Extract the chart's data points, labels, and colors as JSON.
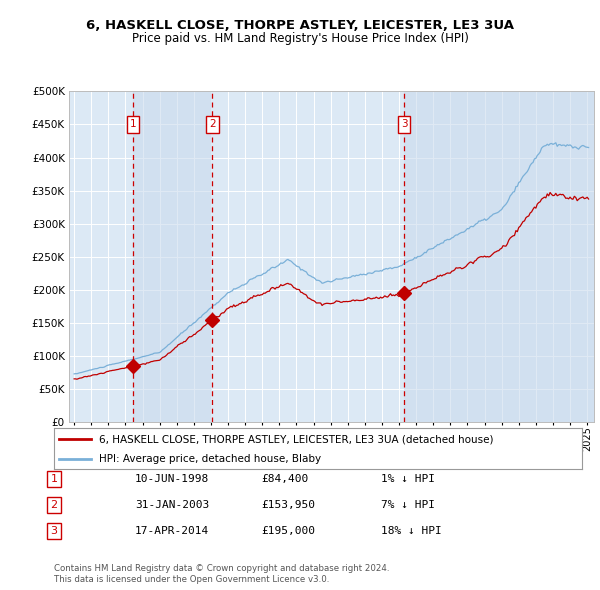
{
  "title": "6, HASKELL CLOSE, THORPE ASTLEY, LEICESTER, LE3 3UA",
  "subtitle": "Price paid vs. HM Land Registry's House Price Index (HPI)",
  "background_color": "#ffffff",
  "plot_bg_color": "#dce9f5",
  "grid_color": "#ffffff",
  "hpi_line_color": "#7ab0d8",
  "price_line_color": "#c00000",
  "shade_color": "#c8d9ed",
  "sales": [
    {
      "label": "1",
      "date_str": "10-JUN-1998",
      "date_num": 1998.44,
      "price": 84400,
      "note": "1% ↓ HPI"
    },
    {
      "label": "2",
      "date_str": "31-JAN-2003",
      "date_num": 2003.08,
      "price": 153950,
      "note": "7% ↓ HPI"
    },
    {
      "label": "3",
      "date_str": "17-APR-2014",
      "date_num": 2014.29,
      "price": 195000,
      "note": "18% ↓ HPI"
    }
  ],
  "legend_line1": "6, HASKELL CLOSE, THORPE ASTLEY, LEICESTER, LE3 3UA (detached house)",
  "legend_line2": "HPI: Average price, detached house, Blaby",
  "footer1": "Contains HM Land Registry data © Crown copyright and database right 2024.",
  "footer2": "This data is licensed under the Open Government Licence v3.0.",
  "ylim": [
    0,
    500000
  ],
  "yticks": [
    0,
    50000,
    100000,
    150000,
    200000,
    250000,
    300000,
    350000,
    400000,
    450000,
    500000
  ],
  "xlim_start": 1994.7,
  "xlim_end": 2025.4,
  "dashed_line_color": "#cc0000",
  "marker_box_color": "#cc0000",
  "marker_box_fill": "#ffffff"
}
